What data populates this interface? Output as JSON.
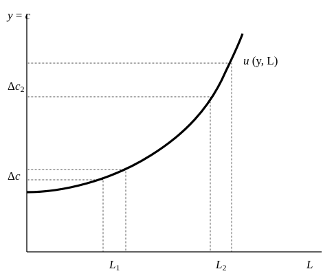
{
  "y_axis_label": {
    "y": "y",
    "eq": " = ",
    "c": "c"
  },
  "x_axis_label": "L",
  "curve_label": {
    "u": "u",
    "args": " (y, L)"
  },
  "left_labels": {
    "delta_c2": {
      "delta": "Δ",
      "c": "c",
      "sub": "2"
    },
    "delta_c": {
      "delta": "Δ",
      "c": "c"
    }
  },
  "bottom_labels": {
    "L1": {
      "L": "L",
      "sub": "1"
    },
    "L2": {
      "L": "L",
      "sub": "2"
    }
  },
  "colors": {
    "stroke": "#000000",
    "background": "#ffffff"
  }
}
